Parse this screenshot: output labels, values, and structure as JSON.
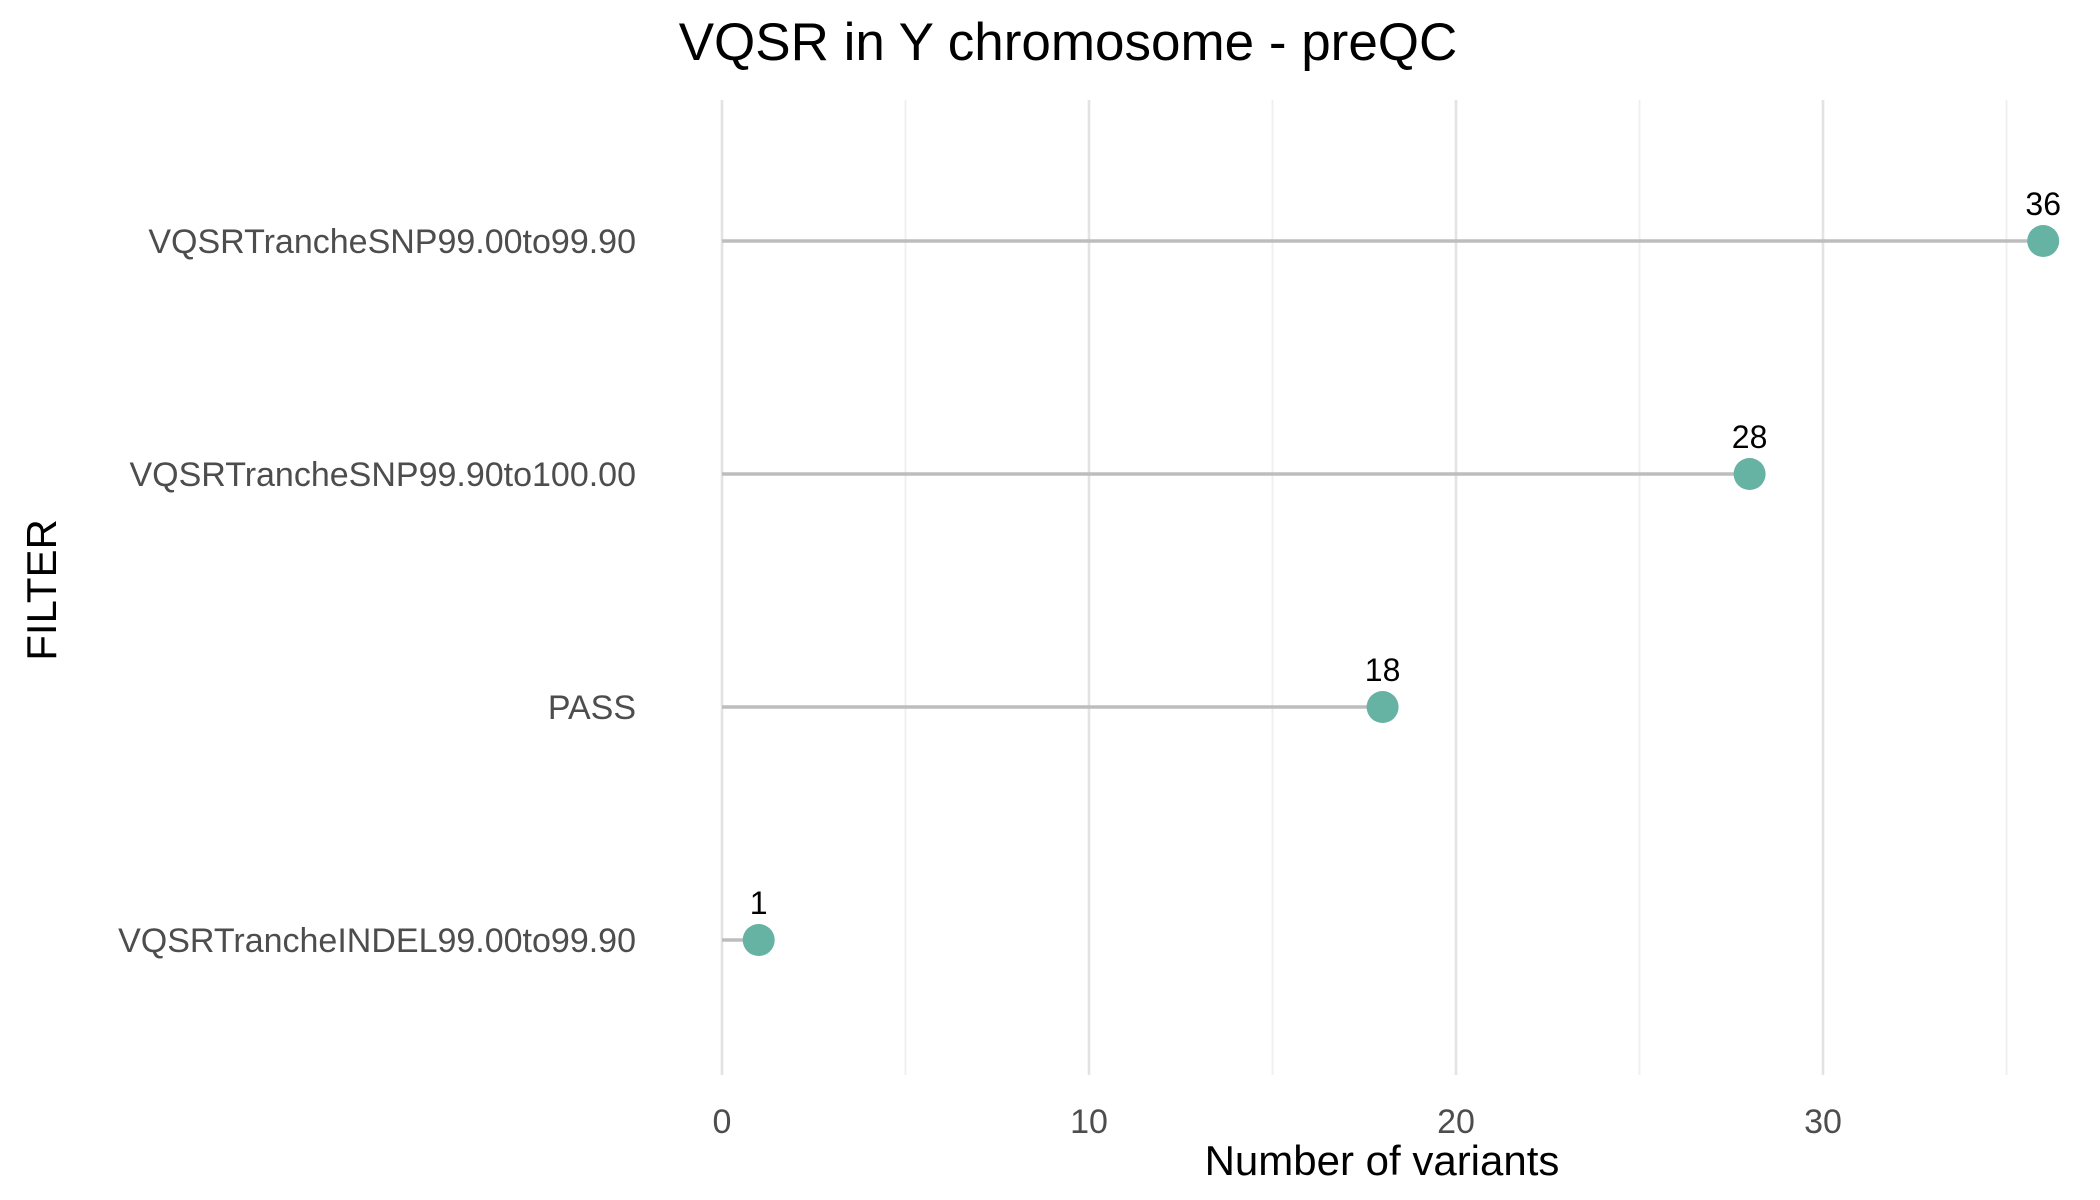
{
  "chart_data": {
    "type": "lollipop",
    "title": "VQSR in Y chromosome - preQC",
    "xlabel": "Number of variants",
    "ylabel": "FILTER",
    "categories": [
      "VQSRTrancheSNP99.00to99.90",
      "VQSRTrancheSNP99.90to100.00",
      "PASS",
      "VQSRTrancheINDEL99.00to99.90"
    ],
    "values": [
      36,
      28,
      18,
      1
    ],
    "data_labels": [
      "36",
      "28",
      "18",
      "1"
    ],
    "xlim": [
      0,
      37
    ],
    "xticks": [
      0,
      10,
      20,
      30
    ],
    "xtick_labels": [
      "0",
      "10",
      "20",
      "30"
    ],
    "x_minor_gridlines": [
      5,
      15,
      25,
      35
    ],
    "grid": true,
    "legend": "none",
    "colors": {
      "point": "#66B2A3",
      "stem": "#BDBDBD",
      "grid_major": "#E3E3E3",
      "grid_minor": "#EFEFEF",
      "tick_text": "#4D4D4D",
      "title_text": "#000000"
    }
  }
}
